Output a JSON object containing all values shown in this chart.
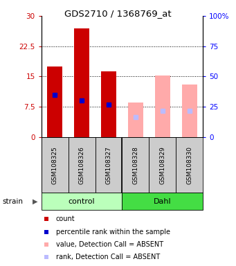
{
  "title": "GDS2710 / 1368769_at",
  "samples": [
    "GSM108325",
    "GSM108326",
    "GSM108327",
    "GSM108328",
    "GSM108329",
    "GSM108330"
  ],
  "red_bar_heights": [
    17.5,
    27.0,
    16.3,
    0,
    0,
    0
  ],
  "blue_dot_y": [
    10.5,
    9.0,
    8.0,
    0,
    0,
    0
  ],
  "pink_bar_heights": [
    0,
    0,
    0,
    8.5,
    15.2,
    13.0
  ],
  "lavender_dot_y": [
    0,
    0,
    0,
    5.0,
    6.5,
    6.5
  ],
  "left_ylim": [
    0,
    30
  ],
  "right_ylim": [
    0,
    100
  ],
  "left_yticks": [
    0,
    7.5,
    15,
    22.5,
    30
  ],
  "right_yticks": [
    0,
    25,
    50,
    75,
    100
  ],
  "left_yticklabels": [
    "0",
    "7.5",
    "15",
    "22.5",
    "30"
  ],
  "right_yticklabels": [
    "0",
    "25",
    "50",
    "75",
    "100%"
  ],
  "red_color": "#cc0000",
  "blue_color": "#0000cc",
  "pink_color": "#ffaaaa",
  "lavender_color": "#bbbbff",
  "control_bg": "#bbffbb",
  "dahl_bg": "#44dd44",
  "bar_width": 0.55,
  "dot_size": 4,
  "group_label_control": "control",
  "group_label_dahl": "Dahl",
  "strain_label": "strain",
  "grid_lines": [
    7.5,
    15,
    22.5
  ],
  "fig_width": 3.41,
  "fig_height": 3.84,
  "fig_dpi": 100
}
